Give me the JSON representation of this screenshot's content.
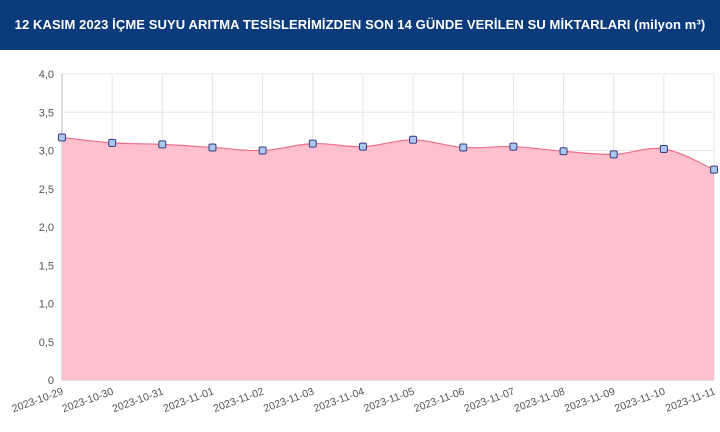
{
  "header": {
    "title": "12 KASIM 2023 İÇME SUYU ARITMA TESİSLERİMİZDEN SON 14 GÜNDE VERİLEN SU MİKTARLARI (milyon m³)"
  },
  "colors": {
    "header_bg": "#0b3b7a",
    "area_fill": "#ffc0cd",
    "line": "#ef6f8a",
    "marker_fill": "#a9c8f0",
    "marker_stroke": "#3a3a7a",
    "grid": "#e6e6e6"
  },
  "chart_data": {
    "type": "area",
    "title": "12 KASIM 2023 İÇME SUYU ARITMA TESİSLERİMİZDEN SON 14 GÜNDE VERİLEN SU MİKTARLARI (milyon m³)",
    "xlabel": "",
    "ylabel": "",
    "x": [
      "2023-10-29",
      "2023-10-30",
      "2023-10-31",
      "2023-11-01",
      "2023-11-02",
      "2023-11-03",
      "2023-11-04",
      "2023-11-05",
      "2023-11-06",
      "2023-11-07",
      "2023-11-08",
      "2023-11-09",
      "2023-11-10",
      "2023-11-11"
    ],
    "values": [
      3.17,
      3.1,
      3.08,
      3.04,
      3.0,
      3.09,
      3.05,
      3.14,
      3.04,
      3.05,
      2.99,
      2.95,
      3.02,
      2.75
    ],
    "ylim": [
      0,
      4
    ],
    "yticks": [
      "0",
      "0,5",
      "1,0",
      "1,5",
      "2,0",
      "2,5",
      "3,0",
      "3,5",
      "4,0"
    ],
    "ytick_values": [
      0,
      0.5,
      1.0,
      1.5,
      2.0,
      2.5,
      3.0,
      3.5,
      4.0
    ],
    "grid": true,
    "legend": "none"
  }
}
